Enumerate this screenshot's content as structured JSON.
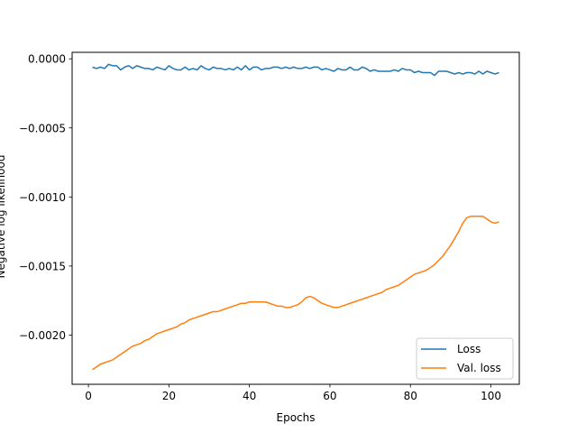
{
  "chart_data": {
    "type": "line",
    "title": "",
    "xlabel": "Epochs",
    "ylabel": "Negative log likelihood",
    "xlim": [
      -4.05,
      107.05
    ],
    "ylim": [
      -0.002356,
      4.7e-05
    ],
    "x_ticks": [
      0,
      20,
      40,
      60,
      80,
      100
    ],
    "y_ticks": [
      0.0,
      -0.0005,
      -0.001,
      -0.0015,
      -0.002
    ],
    "y_tick_labels": [
      "0.0000",
      "−0.0005",
      "−0.0010",
      "−0.0015",
      "−0.0020"
    ],
    "x_tick_labels": [
      "0",
      "20",
      "40",
      "60",
      "80",
      "100"
    ],
    "grid": false,
    "legend": {
      "position": "lower-right"
    },
    "series": [
      {
        "name": "Loss",
        "color": "#1f77b4",
        "x": [
          1,
          2,
          3,
          4,
          5,
          6,
          7,
          8,
          9,
          10,
          11,
          12,
          13,
          14,
          15,
          16,
          17,
          18,
          19,
          20,
          21,
          22,
          23,
          24,
          25,
          26,
          27,
          28,
          29,
          30,
          31,
          32,
          33,
          34,
          35,
          36,
          37,
          38,
          39,
          40,
          41,
          42,
          43,
          44,
          45,
          46,
          47,
          48,
          49,
          50,
          51,
          52,
          53,
          54,
          55,
          56,
          57,
          58,
          59,
          60,
          61,
          62,
          63,
          64,
          65,
          66,
          67,
          68,
          69,
          70,
          71,
          72,
          73,
          74,
          75,
          76,
          77,
          78,
          79,
          80,
          81,
          82,
          83,
          84,
          85,
          86,
          87,
          88,
          89,
          90,
          91,
          92,
          93,
          94,
          95,
          96,
          97,
          98,
          99,
          100,
          101,
          102
        ],
        "y": [
          -6e-05,
          -7e-05,
          -6e-05,
          -7e-05,
          -4e-05,
          -5e-05,
          -5e-05,
          -8e-05,
          -6e-05,
          -5e-05,
          -7e-05,
          -5e-05,
          -6e-05,
          -7e-05,
          -7e-05,
          -8e-05,
          -6e-05,
          -7e-05,
          -8e-05,
          -5e-05,
          -7e-05,
          -8e-05,
          -8e-05,
          -6e-05,
          -8e-05,
          -7e-05,
          -8e-05,
          -5e-05,
          -7e-05,
          -8e-05,
          -6e-05,
          -7e-05,
          -7e-05,
          -8e-05,
          -7e-05,
          -8e-05,
          -6e-05,
          -8e-05,
          -5e-05,
          -8e-05,
          -6e-05,
          -6e-05,
          -8e-05,
          -7e-05,
          -7e-05,
          -6e-05,
          -6e-05,
          -7e-05,
          -6e-05,
          -7e-05,
          -6e-05,
          -7e-05,
          -7e-05,
          -6e-05,
          -7e-05,
          -6e-05,
          -6e-05,
          -8e-05,
          -7e-05,
          -8e-05,
          -9e-05,
          -7e-05,
          -8e-05,
          -8e-05,
          -6e-05,
          -8e-05,
          -8e-05,
          -6e-05,
          -7e-05,
          -9e-05,
          -8e-05,
          -9e-05,
          -9e-05,
          -9e-05,
          -9e-05,
          -8e-05,
          -9e-05,
          -7e-05,
          -8e-05,
          -8e-05,
          -0.0001,
          -9e-05,
          -0.0001,
          -0.0001,
          -0.0001,
          -0.00012,
          -9e-05,
          -9e-05,
          -9e-05,
          -0.0001,
          -0.00011,
          -0.0001,
          -0.00011,
          -0.0001,
          -0.0001,
          -0.00011,
          -9e-05,
          -0.00011,
          -9e-05,
          -0.0001,
          -0.00011,
          -0.0001
        ]
      },
      {
        "name": "Val. loss",
        "color": "#ff7f0e",
        "x": [
          1,
          2,
          3,
          4,
          5,
          6,
          7,
          8,
          9,
          10,
          11,
          12,
          13,
          14,
          15,
          16,
          17,
          18,
          19,
          20,
          21,
          22,
          23,
          24,
          25,
          26,
          27,
          28,
          29,
          30,
          31,
          32,
          33,
          34,
          35,
          36,
          37,
          38,
          39,
          40,
          41,
          42,
          43,
          44,
          45,
          46,
          47,
          48,
          49,
          50,
          51,
          52,
          53,
          54,
          55,
          56,
          57,
          58,
          59,
          60,
          61,
          62,
          63,
          64,
          65,
          66,
          67,
          68,
          69,
          70,
          71,
          72,
          73,
          74,
          75,
          76,
          77,
          78,
          79,
          80,
          81,
          82,
          83,
          84,
          85,
          86,
          87,
          88,
          89,
          90,
          91,
          92,
          93,
          94,
          95,
          96,
          97,
          98,
          99,
          100,
          101,
          102
        ],
        "y": [
          -0.00225,
          -0.00223,
          -0.00221,
          -0.0022,
          -0.00219,
          -0.00218,
          -0.00216,
          -0.00214,
          -0.00212,
          -0.0021,
          -0.00208,
          -0.00207,
          -0.00206,
          -0.00204,
          -0.00203,
          -0.00201,
          -0.00199,
          -0.00198,
          -0.00197,
          -0.00196,
          -0.00195,
          -0.00194,
          -0.00192,
          -0.00191,
          -0.00189,
          -0.00188,
          -0.00187,
          -0.00186,
          -0.00185,
          -0.00184,
          -0.00183,
          -0.00183,
          -0.00182,
          -0.00181,
          -0.0018,
          -0.00179,
          -0.00178,
          -0.00177,
          -0.00177,
          -0.00176,
          -0.00176,
          -0.00176,
          -0.00176,
          -0.00176,
          -0.00177,
          -0.00178,
          -0.00179,
          -0.00179,
          -0.0018,
          -0.0018,
          -0.00179,
          -0.00178,
          -0.00176,
          -0.00173,
          -0.00172,
          -0.00173,
          -0.00175,
          -0.00177,
          -0.00178,
          -0.00179,
          -0.0018,
          -0.0018,
          -0.00179,
          -0.00178,
          -0.00177,
          -0.00176,
          -0.00175,
          -0.00174,
          -0.00173,
          -0.00172,
          -0.00171,
          -0.0017,
          -0.00169,
          -0.00167,
          -0.00166,
          -0.00165,
          -0.00164,
          -0.00162,
          -0.0016,
          -0.00158,
          -0.00156,
          -0.00155,
          -0.00154,
          -0.00153,
          -0.00151,
          -0.00149,
          -0.00146,
          -0.00143,
          -0.00139,
          -0.00135,
          -0.0013,
          -0.00125,
          -0.00119,
          -0.00115,
          -0.00114,
          -0.00114,
          -0.00114,
          -0.00114,
          -0.00116,
          -0.00118,
          -0.00119,
          -0.00118
        ]
      }
    ]
  }
}
